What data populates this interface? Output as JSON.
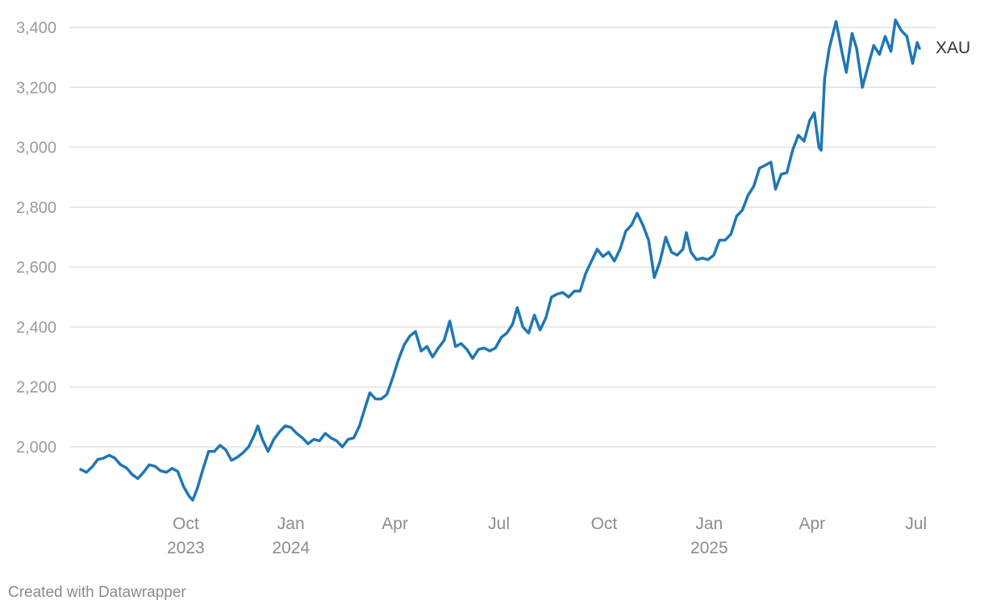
{
  "chart_data": {
    "type": "line",
    "title": "",
    "xlabel": "",
    "ylabel": "",
    "xlim": [
      "2023-07-01",
      "2025-07-04"
    ],
    "ylim": [
      1820,
      3440
    ],
    "y_ticks": [
      {
        "value": 2000,
        "label": "2,000"
      },
      {
        "value": 2200,
        "label": "2,200"
      },
      {
        "value": 2400,
        "label": "2,400"
      },
      {
        "value": 2600,
        "label": "2,600"
      },
      {
        "value": 2800,
        "label": "2,800"
      },
      {
        "value": 3000,
        "label": "3,000"
      },
      {
        "value": 3200,
        "label": "3,200"
      },
      {
        "value": 3400,
        "label": "3,400"
      }
    ],
    "x_ticks": [
      {
        "date": "2023-10-01",
        "label": "Oct",
        "year": "2023"
      },
      {
        "date": "2024-01-01",
        "label": "Jan",
        "year": "2024"
      },
      {
        "date": "2024-04-01",
        "label": "Apr",
        "year": ""
      },
      {
        "date": "2024-07-01",
        "label": "Jul",
        "year": ""
      },
      {
        "date": "2024-10-01",
        "label": "Oct",
        "year": ""
      },
      {
        "date": "2025-01-01",
        "label": "Jan",
        "year": "2025"
      },
      {
        "date": "2025-04-01",
        "label": "Apr",
        "year": ""
      },
      {
        "date": "2025-07-01",
        "label": "Jul",
        "year": ""
      }
    ],
    "grid": true,
    "series": [
      {
        "name": "XAU",
        "color": "#1f77b4",
        "points": [
          [
            "2023-07-01",
            1925
          ],
          [
            "2023-07-06",
            1915
          ],
          [
            "2023-07-11",
            1933
          ],
          [
            "2023-07-16",
            1958
          ],
          [
            "2023-07-21",
            1962
          ],
          [
            "2023-07-26",
            1972
          ],
          [
            "2023-07-31",
            1962
          ],
          [
            "2023-08-05",
            1940
          ],
          [
            "2023-08-10",
            1930
          ],
          [
            "2023-08-15",
            1908
          ],
          [
            "2023-08-20",
            1894
          ],
          [
            "2023-08-25",
            1915
          ],
          [
            "2023-08-30",
            1940
          ],
          [
            "2023-09-04",
            1935
          ],
          [
            "2023-09-09",
            1920
          ],
          [
            "2023-09-14",
            1915
          ],
          [
            "2023-09-19",
            1928
          ],
          [
            "2023-09-24",
            1918
          ],
          [
            "2023-09-29",
            1868
          ],
          [
            "2023-10-04",
            1835
          ],
          [
            "2023-10-07",
            1822
          ],
          [
            "2023-10-11",
            1860
          ],
          [
            "2023-10-16",
            1925
          ],
          [
            "2023-10-21",
            1985
          ],
          [
            "2023-10-26",
            1985
          ],
          [
            "2023-10-31",
            2005
          ],
          [
            "2023-11-05",
            1990
          ],
          [
            "2023-11-10",
            1955
          ],
          [
            "2023-11-15",
            1965
          ],
          [
            "2023-11-20",
            1980
          ],
          [
            "2023-11-25",
            2000
          ],
          [
            "2023-11-30",
            2040
          ],
          [
            "2023-12-03",
            2070
          ],
          [
            "2023-12-07",
            2025
          ],
          [
            "2023-12-12",
            1985
          ],
          [
            "2023-12-17",
            2025
          ],
          [
            "2023-12-22",
            2050
          ],
          [
            "2023-12-27",
            2070
          ],
          [
            "2024-01-01",
            2065
          ],
          [
            "2024-01-06",
            2045
          ],
          [
            "2024-01-11",
            2030
          ],
          [
            "2024-01-16",
            2010
          ],
          [
            "2024-01-21",
            2025
          ],
          [
            "2024-01-26",
            2020
          ],
          [
            "2024-01-31",
            2045
          ],
          [
            "2024-02-05",
            2030
          ],
          [
            "2024-02-10",
            2020
          ],
          [
            "2024-02-15",
            2000
          ],
          [
            "2024-02-20",
            2025
          ],
          [
            "2024-02-25",
            2030
          ],
          [
            "2024-03-01",
            2070
          ],
          [
            "2024-03-05",
            2120
          ],
          [
            "2024-03-10",
            2180
          ],
          [
            "2024-03-15",
            2160
          ],
          [
            "2024-03-20",
            2160
          ],
          [
            "2024-03-25",
            2175
          ],
          [
            "2024-03-30",
            2230
          ],
          [
            "2024-04-04",
            2290
          ],
          [
            "2024-04-09",
            2340
          ],
          [
            "2024-04-14",
            2370
          ],
          [
            "2024-04-19",
            2385
          ],
          [
            "2024-04-24",
            2320
          ],
          [
            "2024-04-29",
            2335
          ],
          [
            "2024-05-04",
            2300
          ],
          [
            "2024-05-09",
            2330
          ],
          [
            "2024-05-14",
            2355
          ],
          [
            "2024-05-19",
            2420
          ],
          [
            "2024-05-24",
            2335
          ],
          [
            "2024-05-29",
            2345
          ],
          [
            "2024-06-03",
            2325
          ],
          [
            "2024-06-08",
            2295
          ],
          [
            "2024-06-13",
            2325
          ],
          [
            "2024-06-18",
            2330
          ],
          [
            "2024-06-23",
            2320
          ],
          [
            "2024-06-28",
            2330
          ],
          [
            "2024-07-03",
            2365
          ],
          [
            "2024-07-08",
            2380
          ],
          [
            "2024-07-13",
            2410
          ],
          [
            "2024-07-17",
            2465
          ],
          [
            "2024-07-22",
            2400
          ],
          [
            "2024-07-27",
            2380
          ],
          [
            "2024-08-01",
            2440
          ],
          [
            "2024-08-06",
            2390
          ],
          [
            "2024-08-11",
            2430
          ],
          [
            "2024-08-16",
            2500
          ],
          [
            "2024-08-21",
            2510
          ],
          [
            "2024-08-26",
            2515
          ],
          [
            "2024-08-31",
            2500
          ],
          [
            "2024-09-05",
            2520
          ],
          [
            "2024-09-10",
            2520
          ],
          [
            "2024-09-15",
            2580
          ],
          [
            "2024-09-20",
            2620
          ],
          [
            "2024-09-25",
            2660
          ],
          [
            "2024-09-30",
            2635
          ],
          [
            "2024-10-05",
            2650
          ],
          [
            "2024-10-10",
            2620
          ],
          [
            "2024-10-15",
            2660
          ],
          [
            "2024-10-20",
            2720
          ],
          [
            "2024-10-25",
            2740
          ],
          [
            "2024-10-30",
            2780
          ],
          [
            "2024-11-04",
            2740
          ],
          [
            "2024-11-09",
            2690
          ],
          [
            "2024-11-14",
            2565
          ],
          [
            "2024-11-19",
            2620
          ],
          [
            "2024-11-24",
            2700
          ],
          [
            "2024-11-29",
            2650
          ],
          [
            "2024-12-04",
            2640
          ],
          [
            "2024-12-09",
            2660
          ],
          [
            "2024-12-12",
            2715
          ],
          [
            "2024-12-16",
            2650
          ],
          [
            "2024-12-21",
            2625
          ],
          [
            "2024-12-26",
            2630
          ],
          [
            "2024-12-31",
            2625
          ],
          [
            "2025-01-05",
            2640
          ],
          [
            "2025-01-10",
            2690
          ],
          [
            "2025-01-15",
            2690
          ],
          [
            "2025-01-20",
            2710
          ],
          [
            "2025-01-25",
            2770
          ],
          [
            "2025-01-30",
            2790
          ],
          [
            "2025-02-04",
            2840
          ],
          [
            "2025-02-09",
            2870
          ],
          [
            "2025-02-14",
            2930
          ],
          [
            "2025-02-19",
            2940
          ],
          [
            "2025-02-24",
            2950
          ],
          [
            "2025-02-28",
            2860
          ],
          [
            "2025-03-05",
            2910
          ],
          [
            "2025-03-10",
            2915
          ],
          [
            "2025-03-15",
            2990
          ],
          [
            "2025-03-20",
            3040
          ],
          [
            "2025-03-25",
            3020
          ],
          [
            "2025-03-30",
            3090
          ],
          [
            "2025-04-03",
            3115
          ],
          [
            "2025-04-07",
            3000
          ],
          [
            "2025-04-09",
            2990
          ],
          [
            "2025-04-12",
            3230
          ],
          [
            "2025-04-16",
            3330
          ],
          [
            "2025-04-22",
            3420
          ],
          [
            "2025-04-27",
            3320
          ],
          [
            "2025-05-01",
            3250
          ],
          [
            "2025-05-06",
            3380
          ],
          [
            "2025-05-10",
            3330
          ],
          [
            "2025-05-15",
            3200
          ],
          [
            "2025-05-20",
            3270
          ],
          [
            "2025-05-25",
            3340
          ],
          [
            "2025-05-30",
            3310
          ],
          [
            "2025-06-04",
            3370
          ],
          [
            "2025-06-09",
            3320
          ],
          [
            "2025-06-13",
            3425
          ],
          [
            "2025-06-18",
            3390
          ],
          [
            "2025-06-23",
            3370
          ],
          [
            "2025-06-28",
            3280
          ],
          [
            "2025-07-02",
            3350
          ],
          [
            "2025-07-04",
            3330
          ]
        ]
      }
    ],
    "series_label": "XAU",
    "credit": "Created with Datawrapper"
  }
}
